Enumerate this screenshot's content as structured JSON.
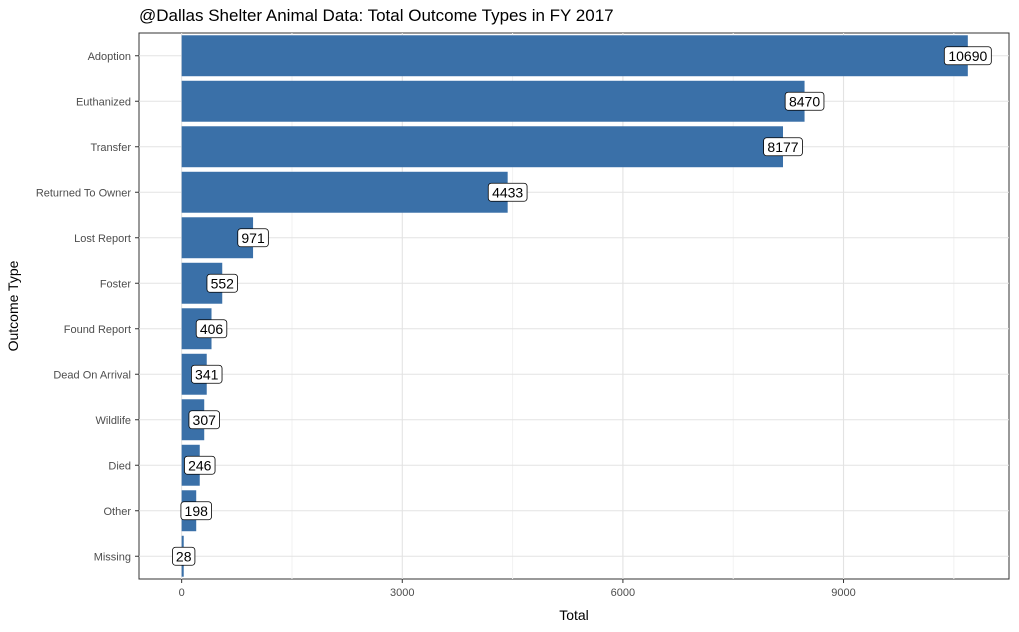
{
  "chart_data": {
    "type": "bar",
    "orientation": "horizontal",
    "title": "@Dallas Shelter Animal Data: Total Outcome Types in FY 2017",
    "xlabel": "Total",
    "ylabel": "Outcome Type",
    "xlim": [
      -580,
      11250
    ],
    "x_ticks": [
      0,
      3000,
      6000,
      9000
    ],
    "x_tick_labels": [
      "0",
      "3000",
      "6000",
      "9000"
    ],
    "grid": true,
    "bar_color": "#3a70a8",
    "categories": [
      "Adoption",
      "Euthanized",
      "Transfer",
      "Returned To Owner",
      "Lost Report",
      "Foster",
      "Found Report",
      "Dead On Arrival",
      "Wildlife",
      "Died",
      "Other",
      "Missing"
    ],
    "values": [
      10690,
      8470,
      8177,
      4433,
      971,
      552,
      406,
      341,
      307,
      246,
      198,
      28
    ],
    "data_labels": [
      "10690",
      "8470",
      "8177",
      "4433",
      "971",
      "552",
      "406",
      "341",
      "307",
      "246",
      "198",
      "28"
    ]
  }
}
